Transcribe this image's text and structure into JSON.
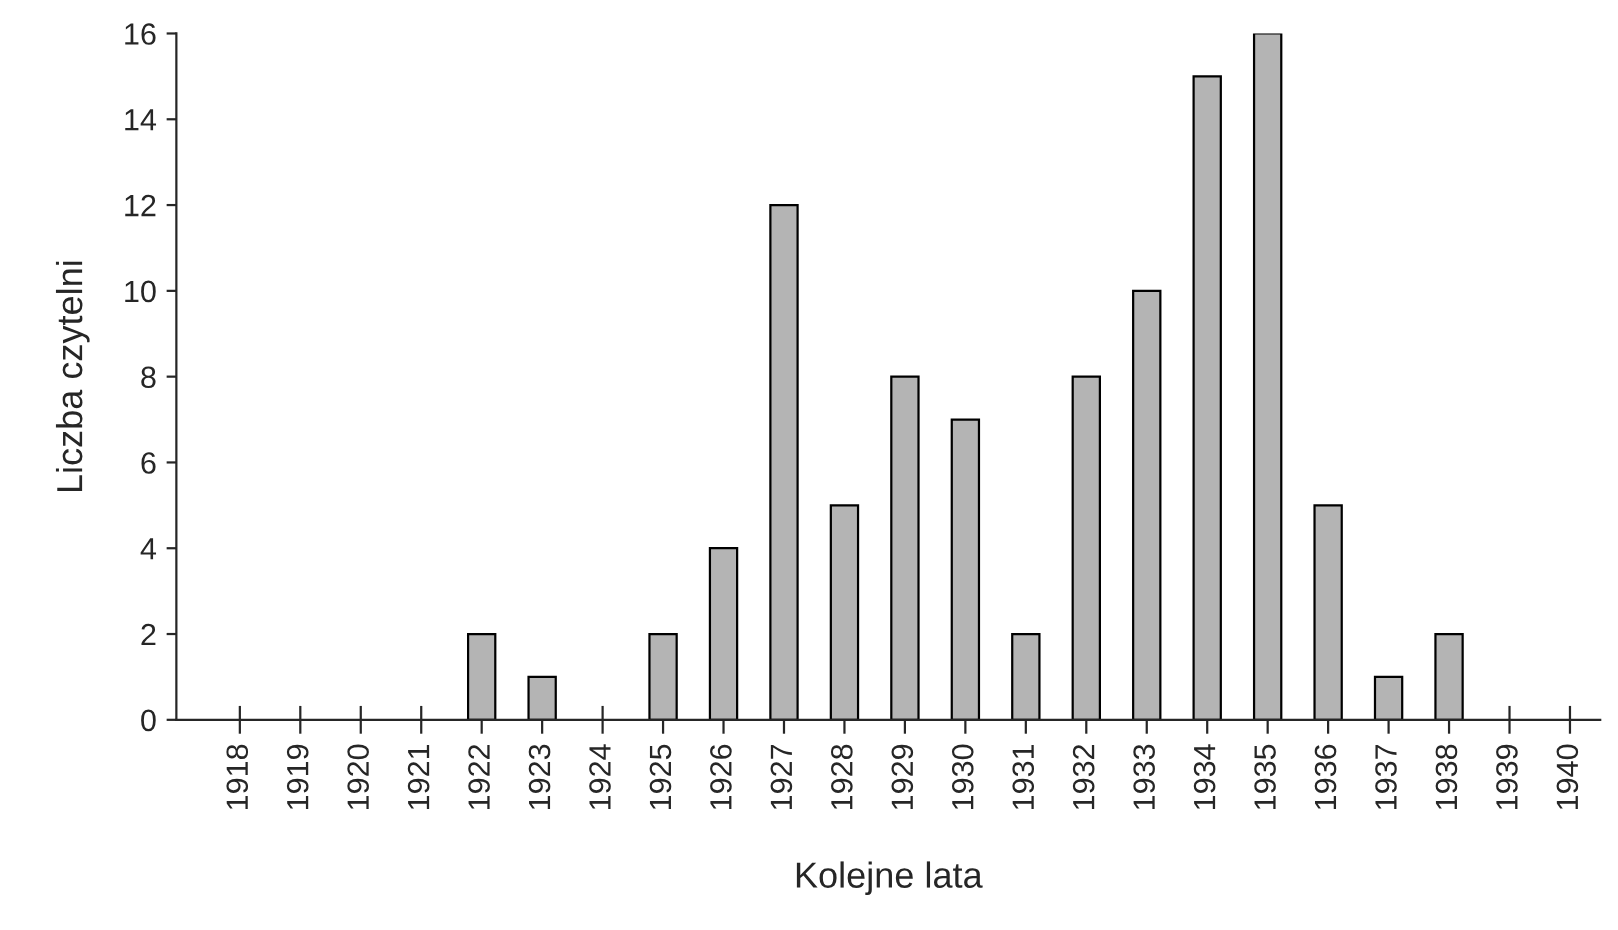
{
  "chart_data": {
    "type": "bar",
    "xlabel": "Kolejne lata",
    "ylabel": "Liczba czytelni",
    "categories": [
      "1918",
      "1919",
      "1920",
      "1921",
      "1922",
      "1923",
      "1924",
      "1925",
      "1926",
      "1927",
      "1928",
      "1929",
      "1930",
      "1931",
      "1932",
      "1933",
      "1934",
      "1935",
      "1936",
      "1937",
      "1938",
      "1939",
      "1940"
    ],
    "values": [
      0,
      0,
      0,
      0,
      2,
      1,
      0,
      2,
      4,
      12,
      5,
      8,
      7,
      2,
      8,
      10,
      15,
      16,
      5,
      1,
      2,
      0,
      0
    ],
    "color": "#b4b4b4",
    "ylim": [
      0,
      16
    ],
    "yticks": [
      0,
      2,
      4,
      6,
      8,
      10,
      12,
      14,
      16
    ],
    "grid": false
  }
}
